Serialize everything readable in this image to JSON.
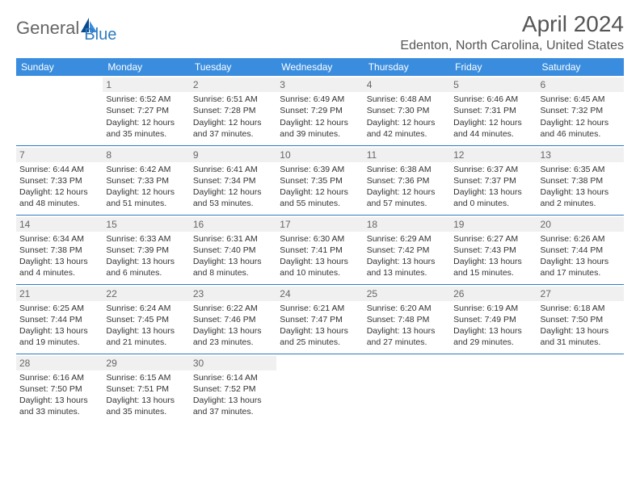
{
  "logo": {
    "text1": "General",
    "text2": "Blue"
  },
  "title": "April 2024",
  "location": "Edenton, North Carolina, United States",
  "colors": {
    "header_bg": "#3a8dde",
    "header_text": "#ffffff",
    "border": "#2f7bbf",
    "daynum_bg": "#f0f0f0",
    "text": "#333333",
    "logo_gray": "#666666",
    "logo_blue": "#2f7bbf"
  },
  "day_headers": [
    "Sunday",
    "Monday",
    "Tuesday",
    "Wednesday",
    "Thursday",
    "Friday",
    "Saturday"
  ],
  "weeks": [
    [
      {
        "n": "",
        "sr": "",
        "ss": "",
        "d1": "",
        "d2": ""
      },
      {
        "n": "1",
        "sr": "Sunrise: 6:52 AM",
        "ss": "Sunset: 7:27 PM",
        "d1": "Daylight: 12 hours",
        "d2": "and 35 minutes."
      },
      {
        "n": "2",
        "sr": "Sunrise: 6:51 AM",
        "ss": "Sunset: 7:28 PM",
        "d1": "Daylight: 12 hours",
        "d2": "and 37 minutes."
      },
      {
        "n": "3",
        "sr": "Sunrise: 6:49 AM",
        "ss": "Sunset: 7:29 PM",
        "d1": "Daylight: 12 hours",
        "d2": "and 39 minutes."
      },
      {
        "n": "4",
        "sr": "Sunrise: 6:48 AM",
        "ss": "Sunset: 7:30 PM",
        "d1": "Daylight: 12 hours",
        "d2": "and 42 minutes."
      },
      {
        "n": "5",
        "sr": "Sunrise: 6:46 AM",
        "ss": "Sunset: 7:31 PM",
        "d1": "Daylight: 12 hours",
        "d2": "and 44 minutes."
      },
      {
        "n": "6",
        "sr": "Sunrise: 6:45 AM",
        "ss": "Sunset: 7:32 PM",
        "d1": "Daylight: 12 hours",
        "d2": "and 46 minutes."
      }
    ],
    [
      {
        "n": "7",
        "sr": "Sunrise: 6:44 AM",
        "ss": "Sunset: 7:33 PM",
        "d1": "Daylight: 12 hours",
        "d2": "and 48 minutes."
      },
      {
        "n": "8",
        "sr": "Sunrise: 6:42 AM",
        "ss": "Sunset: 7:33 PM",
        "d1": "Daylight: 12 hours",
        "d2": "and 51 minutes."
      },
      {
        "n": "9",
        "sr": "Sunrise: 6:41 AM",
        "ss": "Sunset: 7:34 PM",
        "d1": "Daylight: 12 hours",
        "d2": "and 53 minutes."
      },
      {
        "n": "10",
        "sr": "Sunrise: 6:39 AM",
        "ss": "Sunset: 7:35 PM",
        "d1": "Daylight: 12 hours",
        "d2": "and 55 minutes."
      },
      {
        "n": "11",
        "sr": "Sunrise: 6:38 AM",
        "ss": "Sunset: 7:36 PM",
        "d1": "Daylight: 12 hours",
        "d2": "and 57 minutes."
      },
      {
        "n": "12",
        "sr": "Sunrise: 6:37 AM",
        "ss": "Sunset: 7:37 PM",
        "d1": "Daylight: 13 hours",
        "d2": "and 0 minutes."
      },
      {
        "n": "13",
        "sr": "Sunrise: 6:35 AM",
        "ss": "Sunset: 7:38 PM",
        "d1": "Daylight: 13 hours",
        "d2": "and 2 minutes."
      }
    ],
    [
      {
        "n": "14",
        "sr": "Sunrise: 6:34 AM",
        "ss": "Sunset: 7:38 PM",
        "d1": "Daylight: 13 hours",
        "d2": "and 4 minutes."
      },
      {
        "n": "15",
        "sr": "Sunrise: 6:33 AM",
        "ss": "Sunset: 7:39 PM",
        "d1": "Daylight: 13 hours",
        "d2": "and 6 minutes."
      },
      {
        "n": "16",
        "sr": "Sunrise: 6:31 AM",
        "ss": "Sunset: 7:40 PM",
        "d1": "Daylight: 13 hours",
        "d2": "and 8 minutes."
      },
      {
        "n": "17",
        "sr": "Sunrise: 6:30 AM",
        "ss": "Sunset: 7:41 PM",
        "d1": "Daylight: 13 hours",
        "d2": "and 10 minutes."
      },
      {
        "n": "18",
        "sr": "Sunrise: 6:29 AM",
        "ss": "Sunset: 7:42 PM",
        "d1": "Daylight: 13 hours",
        "d2": "and 13 minutes."
      },
      {
        "n": "19",
        "sr": "Sunrise: 6:27 AM",
        "ss": "Sunset: 7:43 PM",
        "d1": "Daylight: 13 hours",
        "d2": "and 15 minutes."
      },
      {
        "n": "20",
        "sr": "Sunrise: 6:26 AM",
        "ss": "Sunset: 7:44 PM",
        "d1": "Daylight: 13 hours",
        "d2": "and 17 minutes."
      }
    ],
    [
      {
        "n": "21",
        "sr": "Sunrise: 6:25 AM",
        "ss": "Sunset: 7:44 PM",
        "d1": "Daylight: 13 hours",
        "d2": "and 19 minutes."
      },
      {
        "n": "22",
        "sr": "Sunrise: 6:24 AM",
        "ss": "Sunset: 7:45 PM",
        "d1": "Daylight: 13 hours",
        "d2": "and 21 minutes."
      },
      {
        "n": "23",
        "sr": "Sunrise: 6:22 AM",
        "ss": "Sunset: 7:46 PM",
        "d1": "Daylight: 13 hours",
        "d2": "and 23 minutes."
      },
      {
        "n": "24",
        "sr": "Sunrise: 6:21 AM",
        "ss": "Sunset: 7:47 PM",
        "d1": "Daylight: 13 hours",
        "d2": "and 25 minutes."
      },
      {
        "n": "25",
        "sr": "Sunrise: 6:20 AM",
        "ss": "Sunset: 7:48 PM",
        "d1": "Daylight: 13 hours",
        "d2": "and 27 minutes."
      },
      {
        "n": "26",
        "sr": "Sunrise: 6:19 AM",
        "ss": "Sunset: 7:49 PM",
        "d1": "Daylight: 13 hours",
        "d2": "and 29 minutes."
      },
      {
        "n": "27",
        "sr": "Sunrise: 6:18 AM",
        "ss": "Sunset: 7:50 PM",
        "d1": "Daylight: 13 hours",
        "d2": "and 31 minutes."
      }
    ],
    [
      {
        "n": "28",
        "sr": "Sunrise: 6:16 AM",
        "ss": "Sunset: 7:50 PM",
        "d1": "Daylight: 13 hours",
        "d2": "and 33 minutes."
      },
      {
        "n": "29",
        "sr": "Sunrise: 6:15 AM",
        "ss": "Sunset: 7:51 PM",
        "d1": "Daylight: 13 hours",
        "d2": "and 35 minutes."
      },
      {
        "n": "30",
        "sr": "Sunrise: 6:14 AM",
        "ss": "Sunset: 7:52 PM",
        "d1": "Daylight: 13 hours",
        "d2": "and 37 minutes."
      },
      {
        "n": "",
        "sr": "",
        "ss": "",
        "d1": "",
        "d2": ""
      },
      {
        "n": "",
        "sr": "",
        "ss": "",
        "d1": "",
        "d2": ""
      },
      {
        "n": "",
        "sr": "",
        "ss": "",
        "d1": "",
        "d2": ""
      },
      {
        "n": "",
        "sr": "",
        "ss": "",
        "d1": "",
        "d2": ""
      }
    ]
  ]
}
